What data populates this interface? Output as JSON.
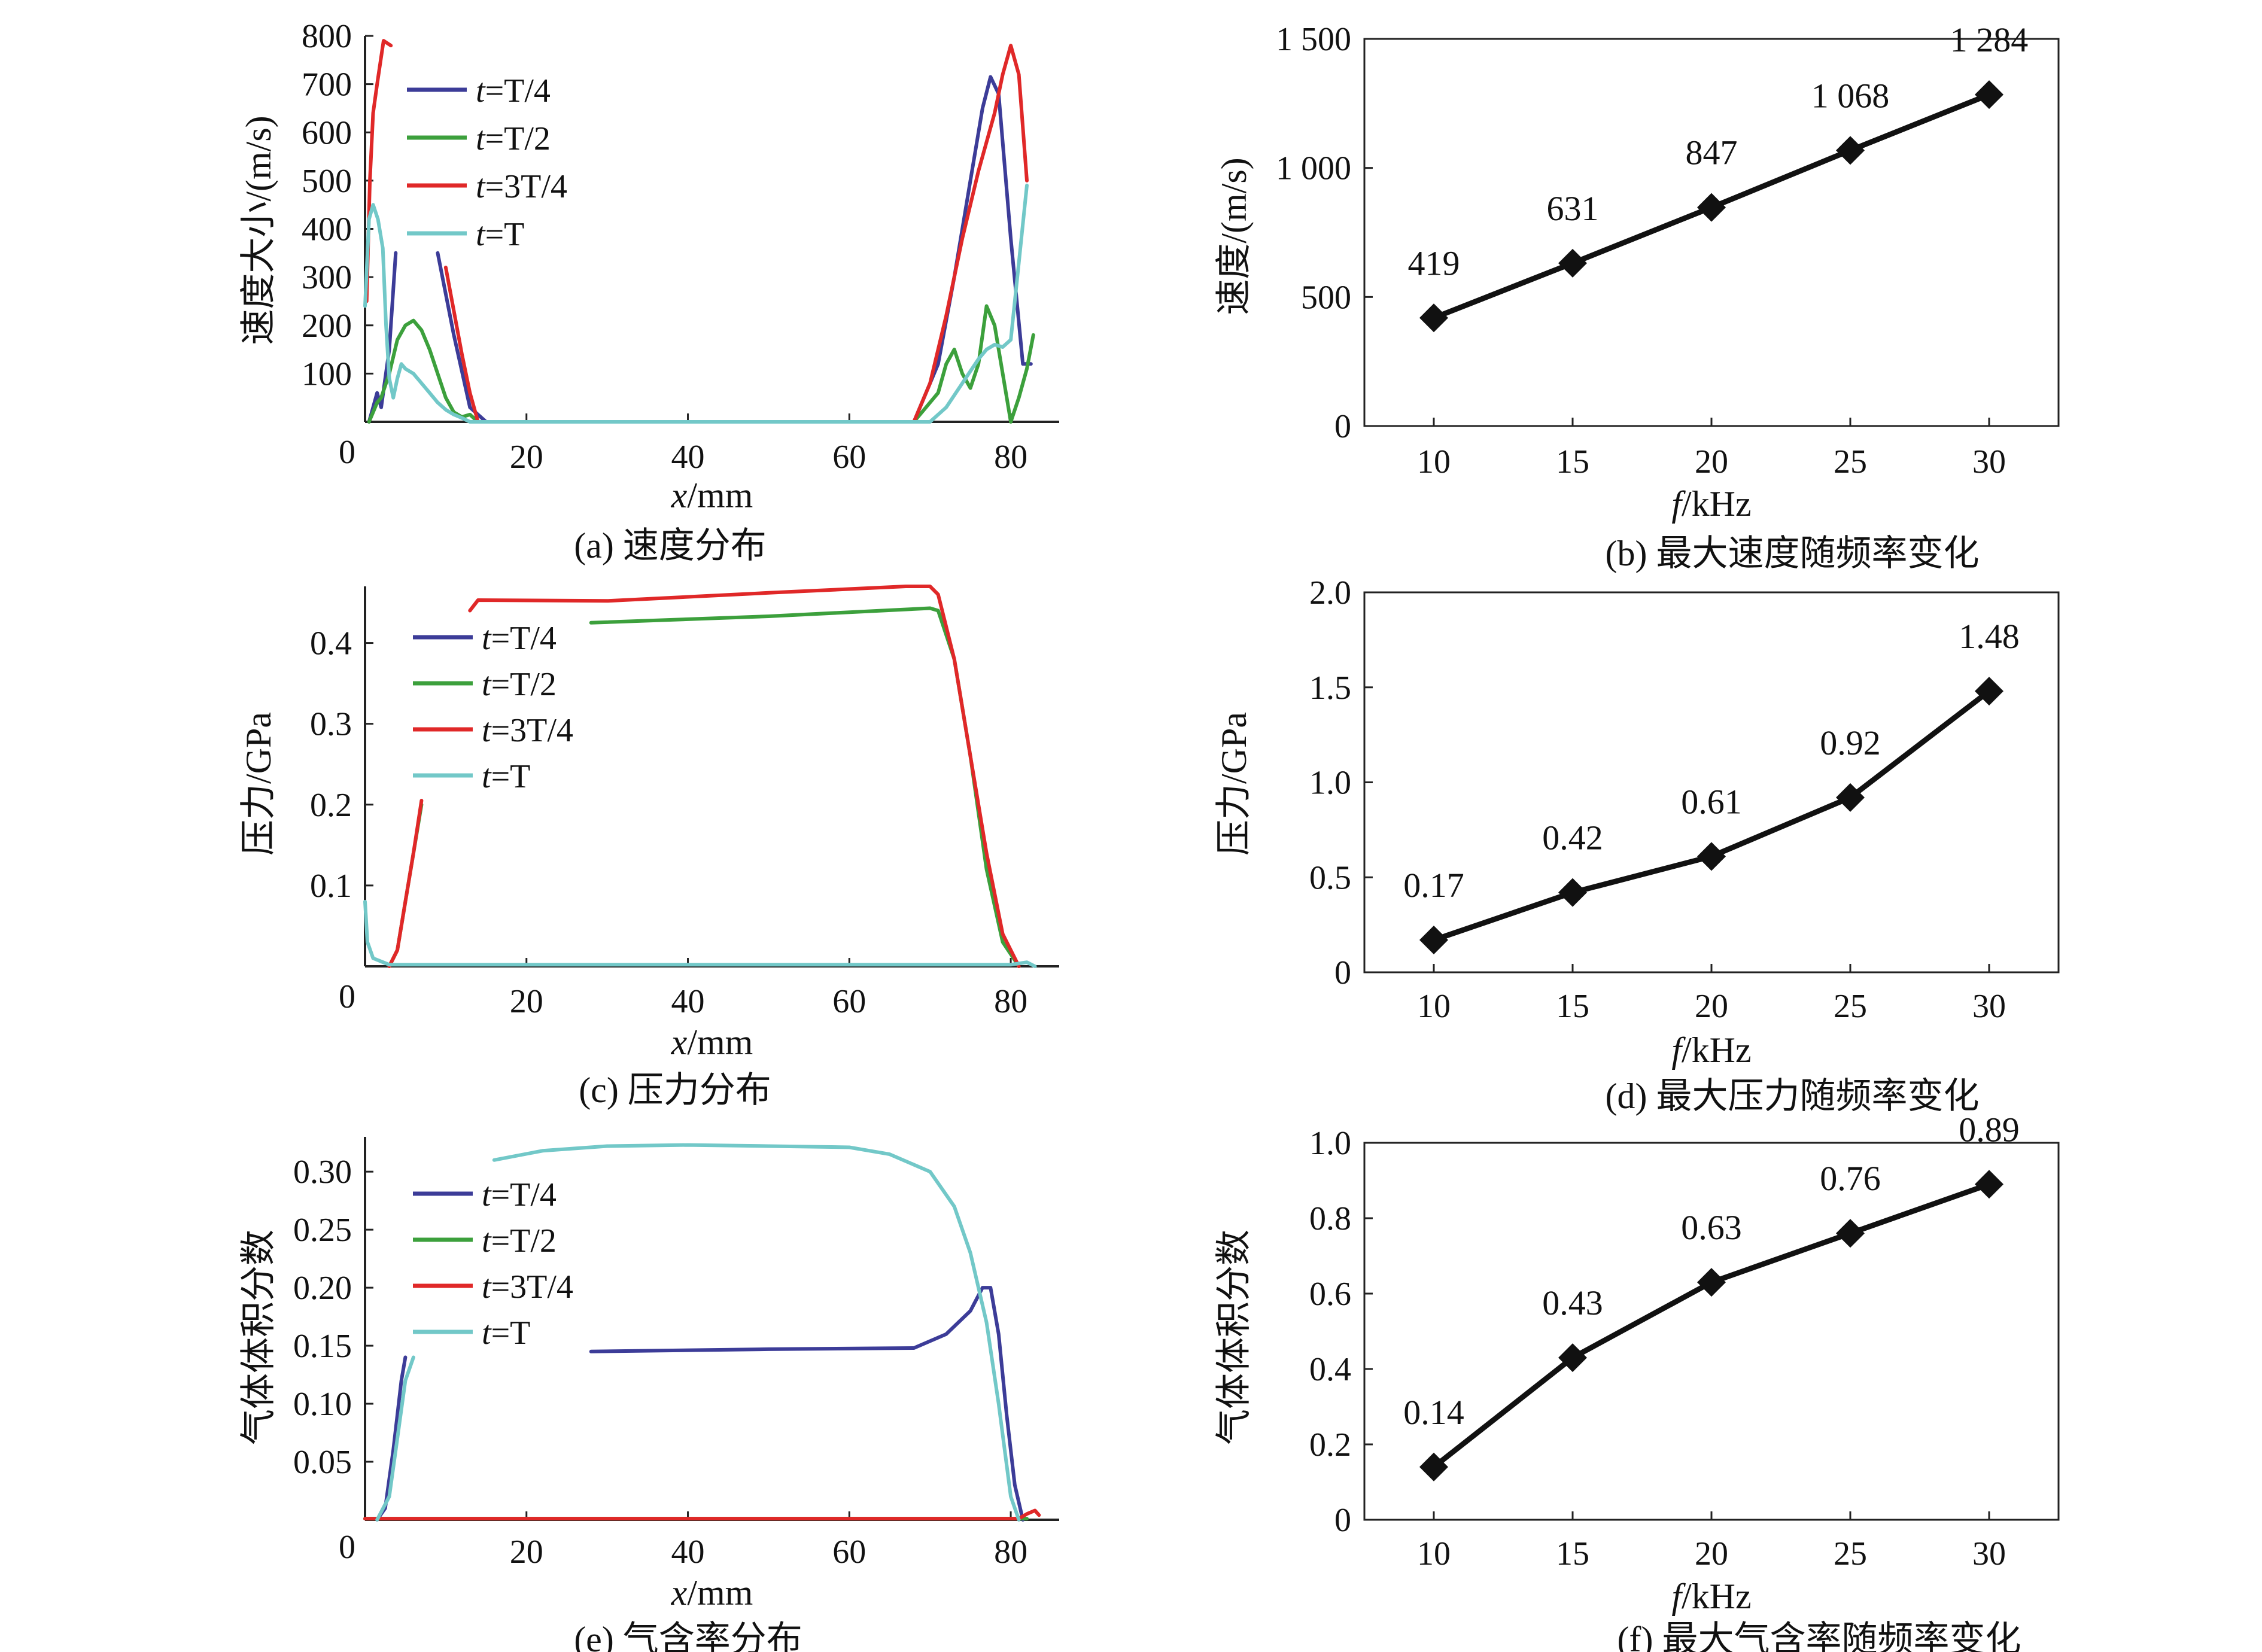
{
  "chart_data": [
    {
      "id": "a",
      "type": "line",
      "caption": "(a) 速度分布",
      "xlabel_var": "x",
      "xlabel_unit": "/mm",
      "ylabel": "速度大小/(m/s)",
      "xlim": [
        0,
        86
      ],
      "ylim": [
        0,
        800
      ],
      "xticks": [
        20,
        40,
        60,
        80
      ],
      "yticks": [
        100,
        200,
        300,
        400,
        500,
        600,
        700,
        800
      ],
      "origin_label": "0",
      "legend": {
        "var": "t",
        "eq": "=",
        "position": "top-left"
      },
      "series": [
        {
          "name": "T/4",
          "color": "#3c3c98",
          "segments": [
            [
              [
                0.5,
                0
              ],
              [
                1,
                30
              ],
              [
                1.5,
                60
              ],
              [
                2,
                30
              ],
              [
                3,
                150
              ],
              [
                3.8,
                350
              ]
            ],
            [
              [
                9,
                350
              ],
              [
                11,
                180
              ],
              [
                13,
                30
              ],
              [
                15,
                0
              ],
              [
                68,
                0
              ],
              [
                71,
                120
              ],
              [
                73,
                300
              ],
              [
                75,
                500
              ],
              [
                76.5,
                650
              ],
              [
                77.5,
                715
              ],
              [
                78.5,
                680
              ],
              [
                80,
                380
              ],
              [
                81.5,
                120
              ],
              [
                82.5,
                120
              ]
            ]
          ]
        },
        {
          "name": "T/2",
          "color": "#3ca03c",
          "segments": [
            [
              [
                0.5,
                0
              ],
              [
                1,
                20
              ],
              [
                1.5,
                40
              ],
              [
                2,
                50
              ],
              [
                3,
                100
              ],
              [
                4,
                170
              ],
              [
                5,
                200
              ],
              [
                6,
                210
              ],
              [
                7,
                190
              ],
              [
                8,
                150
              ],
              [
                9,
                100
              ],
              [
                10,
                50
              ],
              [
                11,
                20
              ],
              [
                12,
                10
              ],
              [
                13,
                15
              ],
              [
                14,
                0
              ],
              [
                68,
                0
              ],
              [
                71,
                60
              ],
              [
                72,
                120
              ],
              [
                73,
                150
              ],
              [
                74,
                100
              ],
              [
                75,
                70
              ],
              [
                76,
                120
              ],
              [
                77,
                240
              ],
              [
                78,
                200
              ],
              [
                79,
                100
              ],
              [
                80,
                0
              ],
              [
                81,
                50
              ],
              [
                82,
                110
              ],
              [
                82.8,
                180
              ]
            ]
          ]
        },
        {
          "name": "3T/4",
          "color": "#e02828",
          "segments": [
            [
              [
                0.2,
                250
              ],
              [
                0.6,
                500
              ],
              [
                1,
                640
              ],
              [
                1.5,
                700
              ],
              [
                2.3,
                790
              ],
              [
                3.2,
                780
              ]
            ],
            [
              [
                10,
                320
              ],
              [
                11,
                230
              ],
              [
                12,
                140
              ],
              [
                13,
                60
              ],
              [
                14,
                0
              ],
              [
                68,
                0
              ],
              [
                70,
                80
              ],
              [
                72,
                220
              ],
              [
                74,
                380
              ],
              [
                76,
                520
              ],
              [
                78,
                640
              ],
              [
                79,
                720
              ],
              [
                80,
                780
              ],
              [
                81,
                720
              ],
              [
                82,
                500
              ]
            ]
          ]
        },
        {
          "name": "T",
          "color": "#72c8c8",
          "segments": [
            [
              [
                0,
                240
              ],
              [
                0.5,
                420
              ],
              [
                1,
                450
              ],
              [
                1.6,
                420
              ],
              [
                2.2,
                360
              ],
              [
                2.6,
                200
              ],
              [
                3,
                90
              ],
              [
                3.5,
                50
              ],
              [
                4,
                90
              ],
              [
                4.5,
                120
              ],
              [
                5,
                110
              ],
              [
                6,
                100
              ],
              [
                7,
                80
              ],
              [
                8,
                60
              ],
              [
                9,
                40
              ],
              [
                10,
                25
              ],
              [
                11,
                15
              ],
              [
                12,
                8
              ],
              [
                13,
                0
              ],
              [
                70,
                0
              ],
              [
                72,
                30
              ],
              [
                74,
                80
              ],
              [
                76,
                130
              ],
              [
                77,
                150
              ],
              [
                78,
                160
              ],
              [
                79,
                155
              ],
              [
                80,
                170
              ],
              [
                81,
                330
              ],
              [
                82,
                490
              ]
            ]
          ]
        }
      ]
    },
    {
      "id": "b",
      "type": "line",
      "caption": "(b) 最大速度随频率变化",
      "xlabel_var": "f",
      "xlabel_unit": "/kHz",
      "ylabel": "速度/(m/s)",
      "categories": [
        "10",
        "15",
        "20",
        "25",
        "30"
      ],
      "x": [
        10,
        15,
        20,
        25,
        30
      ],
      "values": [
        419,
        631,
        847,
        1068,
        1284
      ],
      "value_labels": [
        "419",
        "631",
        "847",
        "1 068",
        "1 284"
      ],
      "xlim": [
        7.5,
        32.5
      ],
      "ylim": [
        0,
        1500
      ],
      "yticks": [
        0,
        500,
        1000,
        1500
      ],
      "ytick_labels": [
        "0",
        "500",
        "1 000",
        "1 500"
      ],
      "marker": "diamond"
    },
    {
      "id": "c",
      "type": "line",
      "caption": "(c) 压力分布",
      "xlabel_var": "x",
      "xlabel_unit": "/mm",
      "ylabel": "压力/GPa",
      "xlim": [
        0,
        86
      ],
      "ylim": [
        0,
        0.47
      ],
      "xticks": [
        20,
        40,
        60,
        80
      ],
      "yticks": [
        0.1,
        0.2,
        0.3,
        0.4
      ],
      "ytick_labels": [
        "0.1",
        "0.2",
        "0.3",
        "0.4"
      ],
      "origin_label": "0",
      "legend": {
        "var": "t",
        "eq": "=",
        "position": "top-left"
      },
      "series": [
        {
          "name": "T/4",
          "color": "#3c3c98",
          "segments": []
        },
        {
          "name": "T/2",
          "color": "#3ca03c",
          "segments": [
            [
              [
                3,
                0.0
              ],
              [
                4,
                0.02
              ],
              [
                5,
                0.08
              ],
              [
                6,
                0.14
              ],
              [
                7,
                0.2
              ]
            ],
            [
              [
                28,
                0.425
              ],
              [
                50,
                0.433
              ],
              [
                70,
                0.443
              ],
              [
                71,
                0.44
              ],
              [
                73,
                0.38
              ],
              [
                75,
                0.26
              ],
              [
                77,
                0.12
              ],
              [
                79,
                0.03
              ],
              [
                81,
                0.0
              ]
            ]
          ]
        },
        {
          "name": "3T/4",
          "color": "#e02828",
          "segments": [
            [
              [
                3,
                0.0
              ],
              [
                4,
                0.02
              ],
              [
                5,
                0.08
              ],
              [
                6,
                0.14
              ],
              [
                7,
                0.205
              ]
            ],
            [
              [
                13,
                0.44
              ],
              [
                14,
                0.453
              ],
              [
                30,
                0.452
              ],
              [
                50,
                0.462
              ],
              [
                67,
                0.47
              ],
              [
                70,
                0.47
              ],
              [
                71,
                0.46
              ],
              [
                73,
                0.38
              ],
              [
                75,
                0.26
              ],
              [
                77,
                0.14
              ],
              [
                79,
                0.04
              ],
              [
                81,
                0.0
              ]
            ]
          ]
        },
        {
          "name": "T",
          "color": "#72c8c8",
          "segments": [
            [
              [
                0,
                0.08
              ],
              [
                0.3,
                0.03
              ],
              [
                1,
                0.01
              ],
              [
                3,
                0.002
              ],
              [
                10,
                0.002
              ],
              [
                60,
                0.002
              ],
              [
                80,
                0.002
              ],
              [
                82,
                0.005
              ],
              [
                83,
                0.0
              ]
            ]
          ]
        }
      ]
    },
    {
      "id": "d",
      "type": "line",
      "caption": "(d) 最大压力随频率变化",
      "xlabel_var": "f",
      "xlabel_unit": "/kHz",
      "ylabel": "压力/GPa",
      "categories": [
        "10",
        "15",
        "20",
        "25",
        "30"
      ],
      "x": [
        10,
        15,
        20,
        25,
        30
      ],
      "values": [
        0.17,
        0.42,
        0.61,
        0.92,
        1.48
      ],
      "value_labels": [
        "0.17",
        "0.42",
        "0.61",
        "0.92",
        "1.48"
      ],
      "xlim": [
        7.5,
        32.5
      ],
      "ylim": [
        0,
        2.0
      ],
      "yticks": [
        0,
        0.5,
        1.0,
        1.5,
        2.0
      ],
      "ytick_labels": [
        "0",
        "0.5",
        "1.0",
        "1.5",
        "2.0"
      ],
      "marker": "diamond"
    },
    {
      "id": "e",
      "type": "line",
      "caption": "(e) 气含率分布",
      "xlabel_var": "x",
      "xlabel_unit": "/mm",
      "ylabel": "气体体积分数",
      "xlim": [
        0,
        86
      ],
      "ylim": [
        0,
        0.33
      ],
      "xticks": [
        20,
        40,
        60,
        80
      ],
      "yticks": [
        0.05,
        0.1,
        0.15,
        0.2,
        0.25,
        0.3
      ],
      "ytick_labels": [
        "0.05",
        "0.10",
        "0.15",
        "0.20",
        "0.25",
        "0.30"
      ],
      "origin_label": "0",
      "legend": {
        "var": "t",
        "eq": "=",
        "position": "top-left"
      },
      "series": [
        {
          "name": "T/4",
          "color": "#3c3c98",
          "segments": [
            [
              [
                1.5,
                0.0
              ],
              [
                2.5,
                0.01
              ],
              [
                3.5,
                0.06
              ],
              [
                4.5,
                0.12
              ],
              [
                5,
                0.14
              ]
            ],
            [
              [
                28,
                0.145
              ],
              [
                50,
                0.147
              ],
              [
                68,
                0.148
              ],
              [
                72,
                0.16
              ],
              [
                75,
                0.18
              ],
              [
                76.5,
                0.2
              ],
              [
                77.5,
                0.2
              ],
              [
                78.5,
                0.16
              ],
              [
                79.5,
                0.09
              ],
              [
                80.5,
                0.03
              ],
              [
                81.5,
                0.0
              ]
            ]
          ]
        },
        {
          "name": "T/2",
          "color": "#3ca03c",
          "segments": [
            [
              [
                0,
                0.001
              ],
              [
                82,
                0.001
              ]
            ]
          ]
        },
        {
          "name": "3T/4",
          "color": "#e02828",
          "segments": [
            [
              [
                0,
                0.001
              ],
              [
                81,
                0.001
              ],
              [
                82,
                0.005
              ],
              [
                83,
                0.008
              ],
              [
                83.5,
                0.004
              ]
            ]
          ]
        },
        {
          "name": "T",
          "color": "#72c8c8",
          "segments": [
            [
              [
                1.5,
                0.0
              ],
              [
                3,
                0.02
              ],
              [
                4,
                0.07
              ],
              [
                5,
                0.12
              ],
              [
                6,
                0.14
              ]
            ],
            [
              [
                16,
                0.31
              ],
              [
                22,
                0.318
              ],
              [
                30,
                0.322
              ],
              [
                40,
                0.323
              ],
              [
                50,
                0.322
              ],
              [
                60,
                0.321
              ],
              [
                65,
                0.315
              ],
              [
                70,
                0.3
              ],
              [
                73,
                0.27
              ],
              [
                75,
                0.23
              ],
              [
                77,
                0.17
              ],
              [
                78.5,
                0.1
              ],
              [
                80,
                0.02
              ],
              [
                81,
                0.0
              ]
            ]
          ]
        }
      ]
    },
    {
      "id": "f",
      "type": "line",
      "caption": "(f) 最大气含率随频率变化",
      "xlabel_var": "f",
      "xlabel_unit": "/kHz",
      "ylabel": "气体体积分数",
      "categories": [
        "10",
        "15",
        "20",
        "25",
        "30"
      ],
      "x": [
        10,
        15,
        20,
        25,
        30
      ],
      "values": [
        0.14,
        0.43,
        0.63,
        0.76,
        0.89
      ],
      "value_labels": [
        "0.14",
        "0.43",
        "0.63",
        "0.76",
        "0.89"
      ],
      "xlim": [
        7.5,
        32.5
      ],
      "ylim": [
        0,
        1.0
      ],
      "yticks": [
        0,
        0.2,
        0.4,
        0.6,
        0.8,
        1.0
      ],
      "ytick_labels": [
        "0",
        "0.2",
        "0.4",
        "0.6",
        "0.8",
        "1.0"
      ],
      "marker": "diamond"
    }
  ]
}
